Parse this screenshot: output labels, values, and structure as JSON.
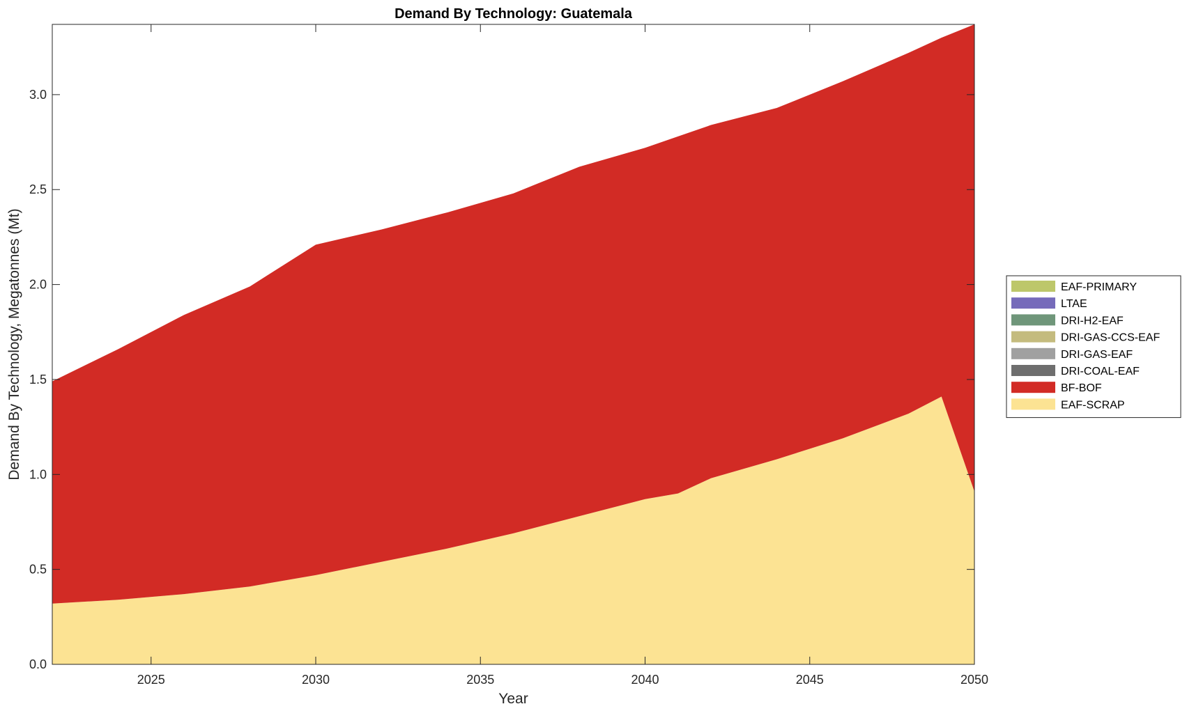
{
  "chart_data": {
    "type": "area",
    "title": "Demand By Technology: Guatemala",
    "xlabel": "Year",
    "ylabel": "Demand By Technology, Megatonnes (Mt)",
    "xlim": [
      2022,
      2050
    ],
    "ylim": [
      0,
      3.37
    ],
    "xticks": [
      2025,
      2030,
      2035,
      2040,
      2045,
      2050
    ],
    "yticks": [
      0,
      0.5,
      1,
      1.5,
      2,
      2.5,
      3
    ],
    "ytick_labels": [
      "0.0",
      "0.5",
      "1.0",
      "1.5",
      "2.0",
      "2.5",
      "3.0"
    ],
    "grid": false,
    "legend_position": "right",
    "x": [
      2022,
      2024,
      2026,
      2028,
      2030,
      2032,
      2034,
      2036,
      2038,
      2040,
      2041,
      2042,
      2044,
      2046,
      2048,
      2049,
      2050
    ],
    "series": [
      {
        "name": "EAF-SCRAP",
        "color": "#FCE393",
        "values": [
          0.32,
          0.34,
          0.37,
          0.41,
          0.47,
          0.54,
          0.61,
          0.69,
          0.78,
          0.87,
          0.9,
          0.98,
          1.08,
          1.19,
          1.32,
          1.41,
          0.91
        ]
      },
      {
        "name": "BF-BOF",
        "color": "#D22B25",
        "values": [
          1.17,
          1.32,
          1.47,
          1.58,
          1.74,
          1.75,
          1.77,
          1.79,
          1.84,
          1.85,
          1.88,
          1.86,
          1.85,
          1.88,
          1.9,
          1.89,
          2.46
        ]
      },
      {
        "name": "DRI-COAL-EAF",
        "color": "#6E6E6E",
        "values": [
          0,
          0,
          0,
          0,
          0,
          0,
          0,
          0,
          0,
          0,
          0,
          0,
          0,
          0,
          0,
          0,
          0
        ]
      },
      {
        "name": "DRI-GAS-EAF",
        "color": "#A0A0A0",
        "values": [
          0,
          0,
          0,
          0,
          0,
          0,
          0,
          0,
          0,
          0,
          0,
          0,
          0,
          0,
          0,
          0,
          0
        ]
      },
      {
        "name": "DRI-GAS-CCS-EAF",
        "color": "#C4BB7E",
        "values": [
          0,
          0,
          0,
          0,
          0,
          0,
          0,
          0,
          0,
          0,
          0,
          0,
          0,
          0,
          0,
          0,
          0
        ]
      },
      {
        "name": "DRI-H2-EAF",
        "color": "#6F967A",
        "values": [
          0,
          0,
          0,
          0,
          0,
          0,
          0,
          0,
          0,
          0,
          0,
          0,
          0,
          0,
          0,
          0,
          0
        ]
      },
      {
        "name": "LTAE",
        "color": "#766BBA",
        "values": [
          0,
          0,
          0,
          0,
          0,
          0,
          0,
          0,
          0,
          0,
          0,
          0,
          0,
          0,
          0,
          0,
          0
        ]
      },
      {
        "name": "EAF-PRIMARY",
        "color": "#BDC76A",
        "values": [
          0,
          0,
          0,
          0,
          0,
          0,
          0,
          0,
          0,
          0,
          0,
          0,
          0,
          0,
          0,
          0,
          0
        ]
      }
    ],
    "legend_order": [
      "EAF-PRIMARY",
      "LTAE",
      "DRI-H2-EAF",
      "DRI-GAS-CCS-EAF",
      "DRI-GAS-EAF",
      "DRI-COAL-EAF",
      "BF-BOF",
      "EAF-SCRAP"
    ]
  }
}
